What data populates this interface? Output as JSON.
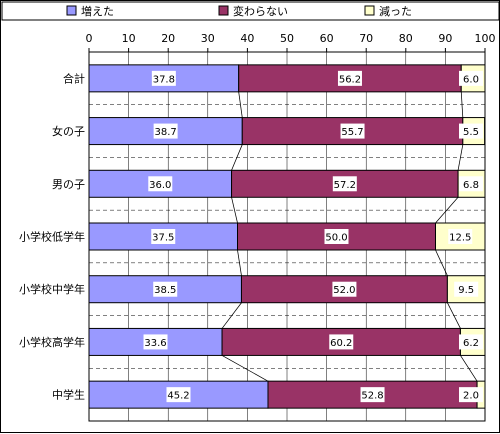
{
  "chart_data": {
    "type": "bar",
    "orientation": "horizontal",
    "stacked": true,
    "categories": [
      "合計",
      "女の子",
      "男の子",
      "小学校低学年",
      "小学校中学年",
      "小学校高学年",
      "中学生"
    ],
    "series": [
      {
        "name": "増えた",
        "color": "#9999ff",
        "values": [
          37.8,
          38.7,
          36.0,
          37.5,
          38.5,
          33.6,
          45.2
        ],
        "labels": [
          "37.8",
          "38.7",
          "36.0",
          "37.5",
          "38.5",
          "33.6",
          "45.2"
        ]
      },
      {
        "name": "変わらない",
        "color": "#993366",
        "values": [
          56.2,
          55.7,
          57.2,
          50.0,
          52.0,
          60.2,
          52.8
        ],
        "labels": [
          "56.2",
          "55.7",
          "57.2",
          "50.0",
          "52.0",
          "60.2",
          "52.8"
        ]
      },
      {
        "name": "減った",
        "color": "#ffffcc",
        "values": [
          6.0,
          5.5,
          6.8,
          12.5,
          9.5,
          6.2,
          2.0
        ],
        "labels": [
          "6.0",
          "5.5",
          "6.8",
          "12.5",
          "9.5",
          "6.2",
          "2.0"
        ]
      }
    ],
    "xlim": [
      0,
      100
    ],
    "xticks": [
      "0",
      "10",
      "20",
      "30",
      "40",
      "50",
      "60",
      "70",
      "80",
      "90",
      "100"
    ],
    "grid": true,
    "series_lines": true,
    "legend": "top"
  }
}
